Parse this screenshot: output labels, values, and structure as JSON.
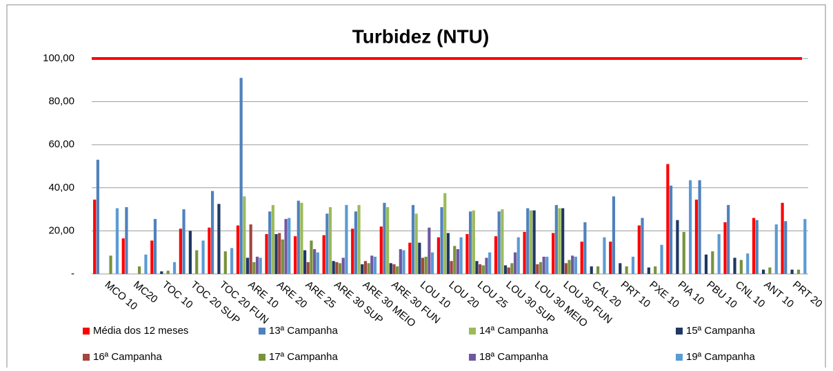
{
  "chart_data": {
    "type": "bar",
    "title": "Turbidez (NTU)",
    "categories": [
      "MCO 10",
      "MC20",
      "TOC 10",
      "TOC 20 SUP",
      "TOC 20 FUN",
      "ARE 10",
      "ARE 20",
      "ARE 25",
      "ARE 30 SUP",
      "ARE 30 MEIO",
      "ARE 30 FUN",
      "LOU 10",
      "LOU 20",
      "LOU 25",
      "LOU 30 SUP",
      "LOU 30 MEIO",
      "LOU 30 FUN",
      "CAL 20",
      "PRT 10",
      "PXE 10",
      "PIA 10",
      "PBU 10",
      "CNL 10",
      "ANT 10",
      "PRT 20"
    ],
    "series": [
      {
        "name": "Média dos 12 meses",
        "color": "#ff0000",
        "values": [
          34.5,
          16.5,
          15.5,
          21,
          21.5,
          22.5,
          18.5,
          17.5,
          18,
          21,
          22,
          14.5,
          17,
          18.5,
          17.5,
          19.5,
          19,
          15,
          15,
          22.5,
          51,
          34.5,
          24,
          26,
          33
        ]
      },
      {
        "name": "13ª Campanha",
        "color": "#4f81bd",
        "values": [
          53,
          31,
          25.5,
          30,
          38.5,
          91,
          29,
          34,
          28,
          29,
          33,
          32,
          31,
          29,
          29,
          30.5,
          32,
          24,
          36,
          26,
          41,
          43.5,
          32,
          25,
          24.5
        ]
      },
      {
        "name": "14ª Campanha",
        "color": "#9bbb59",
        "values": [
          0,
          0,
          0,
          0,
          0,
          36,
          32,
          33,
          31,
          32,
          31,
          28,
          37.5,
          29.5,
          30,
          29.5,
          30.5,
          0,
          0,
          0,
          0,
          0,
          0,
          0,
          0
        ]
      },
      {
        "name": "15ª Campanha",
        "color": "#1f3864",
        "values": [
          0,
          0,
          1.2,
          20,
          32.5,
          7.5,
          18.5,
          11,
          6,
          4.5,
          5,
          14.5,
          19,
          6,
          4,
          29.5,
          30.5,
          3.5,
          5,
          3,
          25,
          9,
          7.5,
          2,
          2
        ]
      },
      {
        "name": "16ª Campanha",
        "color": "#a5453f",
        "values": [
          0,
          0,
          0,
          0,
          0,
          23,
          19,
          5.5,
          5.5,
          6,
          4.5,
          7.5,
          6,
          4.5,
          3,
          4.5,
          5,
          0,
          0,
          0,
          0,
          0,
          0,
          0,
          0
        ]
      },
      {
        "name": "17ª Campanha",
        "color": "#77933c",
        "values": [
          8.5,
          3.5,
          1.5,
          11,
          10.5,
          5.5,
          16,
          15.5,
          5,
          5,
          3.5,
          8,
          13,
          4,
          5,
          5.5,
          6.5,
          3.5,
          3.5,
          3.5,
          19.5,
          10.5,
          6.5,
          3,
          2
        ]
      },
      {
        "name": "18ª Campanha",
        "color": "#7058a0",
        "values": [
          0,
          0,
          0,
          0,
          0,
          8,
          25.5,
          11.5,
          7.5,
          8.5,
          11.5,
          21.5,
          11.5,
          7.5,
          10,
          8,
          8.5,
          0,
          0,
          0,
          0,
          0,
          0,
          0,
          0
        ]
      },
      {
        "name": "19ª Campanha",
        "color": "#5b9bd5",
        "values": [
          30.5,
          9,
          5.5,
          15.5,
          12,
          7.5,
          26,
          10,
          32,
          8,
          11,
          10,
          17,
          10,
          17,
          8,
          8,
          17,
          8,
          13.5,
          43.5,
          18.5,
          9.5,
          23,
          25.5
        ]
      }
    ],
    "limit": 100,
    "limit_color": "#ff0000",
    "ylim": [
      0,
      100
    ],
    "yticks": [
      {
        "value": 0,
        "label": "-"
      },
      {
        "value": 20,
        "label": "20,00"
      },
      {
        "value": 40,
        "label": "40,00"
      },
      {
        "value": 60,
        "label": "60,00"
      },
      {
        "value": 80,
        "label": "80,00"
      },
      {
        "value": 100,
        "label": "100,00"
      }
    ],
    "grid": true,
    "legend": "bottom"
  }
}
